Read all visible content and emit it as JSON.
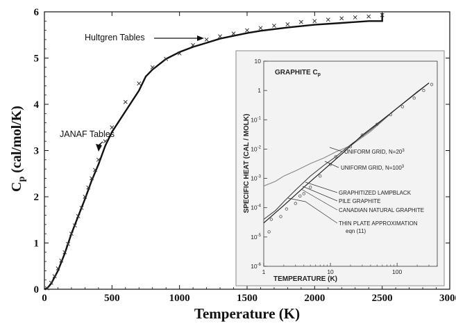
{
  "chart_data": {
    "type": "line",
    "xlabel": "Temperature (K)",
    "ylabel_main": "C",
    "ylabel_sub": "p",
    "ylabel_rest": " (cal/mol/K)",
    "xlim": [
      0,
      3000
    ],
    "ylim": [
      0,
      6
    ],
    "xticks": [
      0,
      500,
      1000,
      1500,
      2000,
      2500,
      3000
    ],
    "yticks": [
      0,
      1,
      2,
      3,
      4,
      5,
      6
    ],
    "grid": false,
    "series": [
      {
        "style": "line",
        "points": [
          [
            0,
            0
          ],
          [
            20,
            0.02
          ],
          [
            50,
            0.12
          ],
          [
            100,
            0.4
          ],
          [
            150,
            0.77
          ],
          [
            200,
            1.2
          ],
          [
            250,
            1.58
          ],
          [
            300,
            1.95
          ],
          [
            350,
            2.35
          ],
          [
            400,
            2.7
          ],
          [
            450,
            3.1
          ],
          [
            500,
            3.4
          ],
          [
            600,
            3.85
          ],
          [
            700,
            4.3
          ],
          [
            750,
            4.6
          ],
          [
            800,
            4.75
          ],
          [
            900,
            4.98
          ],
          [
            1000,
            5.13
          ],
          [
            1100,
            5.24
          ],
          [
            1200,
            5.33
          ],
          [
            1300,
            5.42
          ],
          [
            1400,
            5.48
          ],
          [
            1500,
            5.54
          ],
          [
            1600,
            5.59
          ],
          [
            1800,
            5.66
          ],
          [
            2000,
            5.72
          ],
          [
            2200,
            5.76
          ],
          [
            2400,
            5.8
          ],
          [
            2500,
            5.8
          ],
          [
            2500,
            5.97
          ]
        ]
      },
      {
        "style": "markers",
        "points": [
          [
            20,
            0.02
          ],
          [
            50,
            0.14
          ],
          [
            75,
            0.28
          ],
          [
            100,
            0.45
          ],
          [
            125,
            0.62
          ],
          [
            150,
            0.8
          ],
          [
            175,
            0.98
          ],
          [
            200,
            1.2
          ],
          [
            225,
            1.38
          ],
          [
            250,
            1.58
          ],
          [
            275,
            1.76
          ],
          [
            300,
            2.0
          ],
          [
            325,
            2.2
          ],
          [
            350,
            2.4
          ],
          [
            375,
            2.58
          ],
          [
            400,
            2.8
          ],
          [
            450,
            3.2
          ],
          [
            500,
            3.5
          ],
          [
            600,
            4.05
          ],
          [
            700,
            4.45
          ],
          [
            800,
            4.8
          ],
          [
            900,
            4.98
          ],
          [
            1000,
            5.1
          ],
          [
            1100,
            5.28
          ],
          [
            1200,
            5.4
          ],
          [
            1300,
            5.47
          ],
          [
            1400,
            5.53
          ],
          [
            1500,
            5.6
          ],
          [
            1600,
            5.65
          ],
          [
            1700,
            5.7
          ],
          [
            1800,
            5.73
          ],
          [
            1900,
            5.78
          ],
          [
            2000,
            5.8
          ],
          [
            2100,
            5.83
          ],
          [
            2200,
            5.86
          ],
          [
            2300,
            5.88
          ],
          [
            2400,
            5.9
          ],
          [
            2500,
            5.93
          ]
        ]
      }
    ],
    "annotations": [
      {
        "text": "Hultgren Tables",
        "target": [
          1200,
          5.4
        ]
      },
      {
        "text": "JANAF Tables",
        "target": [
          410,
          2.9
        ]
      }
    ],
    "inset": {
      "type": "line",
      "title": "GRAPHITE C",
      "title_sub": "p",
      "xlabel": "TEMPERATURE   (K)",
      "ylabel": "SPECIFIC HEAT  (CAL / MOLK)",
      "xscale": "log",
      "yscale": "log",
      "xlim": [
        1,
        400
      ],
      "ylim": [
        1e-06,
        10
      ],
      "xtick_labels": [
        "1",
        "10",
        "100"
      ],
      "ytick_labels": [
        {
          "base": "10",
          "exp": ""
        },
        {
          "base": "1",
          "exp": ""
        },
        {
          "base": "10",
          "exp": "-1"
        },
        {
          "base": "10",
          "exp": "-2"
        },
        {
          "base": "10",
          "exp": "-3"
        },
        {
          "base": "10",
          "exp": "-4"
        },
        {
          "base": "10",
          "exp": "-5"
        },
        {
          "base": "10",
          "exp": "-6"
        }
      ],
      "labels": [
        {
          "text": "UNIFORM GRID, N=20",
          "sup": "3"
        },
        {
          "text": "UNIFORM GRID, N=100",
          "sup": "3"
        },
        {
          "text": "GRAPHITIZED LAMPBLACK",
          "sup": ""
        },
        {
          "text": "PILE GRAPHITE",
          "sup": ""
        },
        {
          "text": "CANADIAN NATURAL GRAPHITE",
          "sup": ""
        },
        {
          "text": "THIN PLATE APPROXIMATION",
          "sup": ""
        },
        {
          "text": "eqn (11)",
          "sup": ""
        }
      ],
      "curves": [
        {
          "name": "UNIFORM GRID, N=20^3",
          "points": [
            [
              1,
              0.00055
            ],
            [
              1.5,
              0.0008
            ],
            [
              2,
              0.0012
            ],
            [
              3,
              0.0018
            ],
            [
              5,
              0.0032
            ],
            [
              8,
              0.005
            ],
            [
              12,
              0.008
            ],
            [
              20,
              0.013
            ],
            [
              40,
              0.04
            ],
            [
              100,
              0.25
            ],
            [
              200,
              0.9
            ],
            [
              300,
              1.8
            ]
          ]
        },
        {
          "name": "UNIFORM GRID, N=100^3",
          "points": [
            [
              1,
              4e-05
            ],
            [
              1.5,
              8e-05
            ],
            [
              2,
              0.00016
            ],
            [
              3,
              0.0004
            ],
            [
              5,
              0.0012
            ],
            [
              8,
              0.0028
            ],
            [
              12,
              0.0055
            ],
            [
              20,
              0.014
            ],
            [
              40,
              0.045
            ],
            [
              100,
              0.25
            ],
            [
              200,
              0.9
            ],
            [
              300,
              1.8
            ]
          ]
        },
        {
          "name": "THIN PLATE APPROXIMATION",
          "points": [
            [
              1,
              3e-05
            ],
            [
              2,
              0.00012
            ],
            [
              4,
              0.0005
            ],
            [
              8,
              0.002
            ],
            [
              16,
              0.008
            ],
            [
              30,
              0.03
            ],
            [
              60,
              0.1
            ],
            [
              100,
              0.25
            ],
            [
              300,
              1.8
            ]
          ]
        }
      ],
      "markers": [
        [
          1.2,
          1.5e-05
        ],
        [
          1.3,
          4e-05
        ],
        [
          1.8,
          5e-05
        ],
        [
          2.2,
          9e-05
        ],
        [
          3,
          0.00014
        ],
        [
          3.5,
          0.00025
        ],
        [
          4,
          0.0003
        ],
        [
          5,
          0.0005
        ],
        [
          7,
          0.0012
        ],
        [
          10,
          0.003
        ],
        [
          12,
          0.0055
        ],
        [
          20,
          0.012
        ],
        [
          30,
          0.03
        ],
        [
          50,
          0.07
        ],
        [
          80,
          0.15
        ],
        [
          120,
          0.28
        ],
        [
          180,
          0.55
        ],
        [
          250,
          1.0
        ],
        [
          330,
          1.6
        ]
      ]
    }
  }
}
